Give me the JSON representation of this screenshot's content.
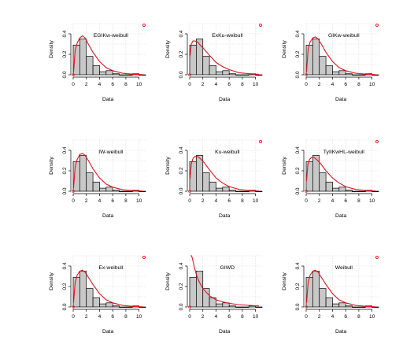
{
  "figure": {
    "line_color": "#e8141c",
    "bar_fill": "#c8c8c8",
    "bar_edge": "#000000",
    "grid_color": "#d9d9d9"
  },
  "chart_data": [
    {
      "type": "bar",
      "title": "EGIKw-weibull",
      "xlabel": "Data",
      "ylabel": "Density",
      "x_ticks": [
        0,
        2,
        4,
        6,
        8,
        10
      ],
      "y_ticks": [
        0.0,
        0.2,
        0.4
      ],
      "xlim": [
        0,
        11
      ],
      "ylim": [
        0,
        0.5
      ],
      "bins": [
        [
          0,
          1
        ],
        [
          1,
          2
        ],
        [
          2,
          3
        ],
        [
          3,
          4
        ],
        [
          4,
          5
        ],
        [
          5,
          6
        ],
        [
          6,
          7
        ],
        [
          7,
          8
        ],
        [
          8,
          9
        ],
        [
          9,
          10
        ],
        [
          10,
          11
        ]
      ],
      "values": [
        0.29,
        0.35,
        0.18,
        0.09,
        0.03,
        0.04,
        0.01,
        0.0,
        0.0,
        0.01,
        0.0
      ],
      "curve": {
        "x": [
          0.05,
          0.3,
          0.6,
          1.0,
          1.4,
          1.8,
          2.3,
          3.0,
          4.0,
          5.0,
          6.0,
          7.5,
          9.0,
          10.5
        ],
        "y": [
          0.02,
          0.24,
          0.31,
          0.36,
          0.38,
          0.36,
          0.3,
          0.22,
          0.13,
          0.07,
          0.04,
          0.015,
          0.006,
          0.002
        ]
      },
      "marker": true
    },
    {
      "type": "bar",
      "title": "ExKu-weibull",
      "xlabel": "Data",
      "ylabel": "Density",
      "x_ticks": [
        0,
        2,
        4,
        6,
        8,
        10
      ],
      "y_ticks": [
        0.0,
        0.2,
        0.4
      ],
      "xlim": [
        0,
        11
      ],
      "ylim": [
        0,
        0.5
      ],
      "bins": [
        [
          0,
          1
        ],
        [
          1,
          2
        ],
        [
          2,
          3
        ],
        [
          3,
          4
        ],
        [
          4,
          5
        ],
        [
          5,
          6
        ],
        [
          6,
          7
        ],
        [
          7,
          8
        ],
        [
          8,
          9
        ],
        [
          9,
          10
        ],
        [
          10,
          11
        ]
      ],
      "values": [
        0.29,
        0.35,
        0.18,
        0.09,
        0.03,
        0.04,
        0.01,
        0.0,
        0.0,
        0.01,
        0.0
      ],
      "curve": {
        "x": [
          0.05,
          0.25,
          0.5,
          0.8,
          1.2,
          1.6,
          2.2,
          3.0,
          4.0,
          5.0,
          6.0,
          7.5,
          9.0,
          10.5
        ],
        "y": [
          0.18,
          0.3,
          0.33,
          0.33,
          0.32,
          0.29,
          0.25,
          0.19,
          0.12,
          0.08,
          0.05,
          0.02,
          0.01,
          0.004
        ]
      },
      "marker": true
    },
    {
      "type": "bar",
      "title": "GIKw-weibull",
      "xlabel": "Data",
      "ylabel": "Density",
      "x_ticks": [
        0,
        2,
        4,
        6,
        8,
        10
      ],
      "y_ticks": [
        0.0,
        0.2,
        0.4
      ],
      "xlim": [
        0,
        11
      ],
      "ylim": [
        0,
        0.5
      ],
      "bins": [
        [
          0,
          1
        ],
        [
          1,
          2
        ],
        [
          2,
          3
        ],
        [
          3,
          4
        ],
        [
          4,
          5
        ],
        [
          5,
          6
        ],
        [
          6,
          7
        ],
        [
          7,
          8
        ],
        [
          8,
          9
        ],
        [
          9,
          10
        ],
        [
          10,
          11
        ]
      ],
      "values": [
        0.29,
        0.35,
        0.18,
        0.09,
        0.03,
        0.04,
        0.01,
        0.0,
        0.0,
        0.01,
        0.0
      ],
      "curve": {
        "x": [
          0.05,
          0.3,
          0.6,
          1.0,
          1.4,
          1.8,
          2.3,
          3.0,
          4.0,
          5.0,
          6.0,
          7.5,
          9.0,
          10.5
        ],
        "y": [
          0.03,
          0.25,
          0.32,
          0.36,
          0.37,
          0.35,
          0.3,
          0.22,
          0.13,
          0.07,
          0.04,
          0.015,
          0.006,
          0.002
        ]
      },
      "marker": true
    },
    {
      "type": "bar",
      "title": "IW-weibull",
      "xlabel": "Data",
      "ylabel": "Density",
      "x_ticks": [
        0,
        2,
        4,
        6,
        8,
        10
      ],
      "y_ticks": [
        0.0,
        0.2,
        0.4
      ],
      "xlim": [
        0,
        11
      ],
      "ylim": [
        0,
        0.5
      ],
      "bins": [
        [
          0,
          1
        ],
        [
          1,
          2
        ],
        [
          2,
          3
        ],
        [
          3,
          4
        ],
        [
          4,
          5
        ],
        [
          5,
          6
        ],
        [
          6,
          7
        ],
        [
          7,
          8
        ],
        [
          8,
          9
        ],
        [
          9,
          10
        ],
        [
          10,
          11
        ]
      ],
      "values": [
        0.29,
        0.35,
        0.18,
        0.09,
        0.03,
        0.04,
        0.01,
        0.0,
        0.0,
        0.01,
        0.0
      ],
      "curve": {
        "x": [
          0.05,
          0.3,
          0.6,
          1.0,
          1.4,
          1.8,
          2.3,
          3.0,
          4.0,
          5.0,
          6.0,
          7.5,
          9.0,
          10.5
        ],
        "y": [
          0.03,
          0.24,
          0.31,
          0.36,
          0.37,
          0.35,
          0.3,
          0.22,
          0.13,
          0.07,
          0.04,
          0.015,
          0.006,
          0.002
        ]
      },
      "marker": false
    },
    {
      "type": "bar",
      "title": "Ku-weibull",
      "xlabel": "Data",
      "ylabel": "Density",
      "x_ticks": [
        0,
        2,
        4,
        6,
        8,
        10
      ],
      "y_ticks": [
        0.0,
        0.2,
        0.4
      ],
      "xlim": [
        0,
        11
      ],
      "ylim": [
        0,
        0.5
      ],
      "bins": [
        [
          0,
          1
        ],
        [
          1,
          2
        ],
        [
          2,
          3
        ],
        [
          3,
          4
        ],
        [
          4,
          5
        ],
        [
          5,
          6
        ],
        [
          6,
          7
        ],
        [
          7,
          8
        ],
        [
          8,
          9
        ],
        [
          9,
          10
        ],
        [
          10,
          11
        ]
      ],
      "values": [
        0.29,
        0.35,
        0.18,
        0.09,
        0.03,
        0.04,
        0.01,
        0.0,
        0.0,
        0.01,
        0.0
      ],
      "curve": {
        "x": [
          0.05,
          0.25,
          0.5,
          0.8,
          1.2,
          1.6,
          2.2,
          3.0,
          4.0,
          5.0,
          6.0,
          7.5,
          9.0,
          10.5
        ],
        "y": [
          0.12,
          0.27,
          0.32,
          0.34,
          0.34,
          0.32,
          0.28,
          0.21,
          0.13,
          0.08,
          0.045,
          0.018,
          0.007,
          0.003
        ]
      },
      "marker": true
    },
    {
      "type": "bar",
      "title": "TyIIKwHL-weibull",
      "xlabel": "Data",
      "ylabel": "Density",
      "x_ticks": [
        0,
        2,
        4,
        6,
        8,
        10
      ],
      "y_ticks": [
        0.0,
        0.2,
        0.4
      ],
      "xlim": [
        0,
        11
      ],
      "ylim": [
        0,
        0.5
      ],
      "bins": [
        [
          0,
          1
        ],
        [
          1,
          2
        ],
        [
          2,
          3
        ],
        [
          3,
          4
        ],
        [
          4,
          5
        ],
        [
          5,
          6
        ],
        [
          6,
          7
        ],
        [
          7,
          8
        ],
        [
          8,
          9
        ],
        [
          9,
          10
        ],
        [
          10,
          11
        ]
      ],
      "values": [
        0.29,
        0.35,
        0.18,
        0.09,
        0.03,
        0.04,
        0.01,
        0.0,
        0.0,
        0.01,
        0.0
      ],
      "curve": {
        "x": [
          0.05,
          0.25,
          0.5,
          0.8,
          1.2,
          1.6,
          2.2,
          3.0,
          4.0,
          5.0,
          6.0,
          7.5,
          9.0,
          10.5
        ],
        "y": [
          0.1,
          0.26,
          0.31,
          0.33,
          0.33,
          0.31,
          0.27,
          0.2,
          0.13,
          0.08,
          0.045,
          0.018,
          0.007,
          0.003
        ]
      },
      "marker": true
    },
    {
      "type": "bar",
      "title": "Ex-weibull",
      "xlabel": "Data",
      "ylabel": "Density",
      "x_ticks": [
        0,
        2,
        4,
        6,
        8,
        10
      ],
      "y_ticks": [
        0.0,
        0.2,
        0.4
      ],
      "xlim": [
        0,
        11
      ],
      "ylim": [
        0,
        0.5
      ],
      "bins": [
        [
          0,
          1
        ],
        [
          1,
          2
        ],
        [
          2,
          3
        ],
        [
          3,
          4
        ],
        [
          4,
          5
        ],
        [
          5,
          6
        ],
        [
          6,
          7
        ],
        [
          7,
          8
        ],
        [
          8,
          9
        ],
        [
          9,
          10
        ],
        [
          10,
          11
        ]
      ],
      "values": [
        0.29,
        0.35,
        0.18,
        0.09,
        0.03,
        0.04,
        0.01,
        0.0,
        0.0,
        0.01,
        0.0
      ],
      "curve": {
        "x": [
          0.05,
          0.3,
          0.6,
          1.0,
          1.4,
          1.8,
          2.3,
          3.0,
          4.0,
          5.0,
          6.0,
          7.5,
          9.0,
          10.5
        ],
        "y": [
          0.04,
          0.24,
          0.31,
          0.35,
          0.36,
          0.34,
          0.29,
          0.22,
          0.13,
          0.07,
          0.04,
          0.015,
          0.006,
          0.002
        ]
      },
      "marker": true
    },
    {
      "type": "bar",
      "title": "GIWD",
      "xlabel": "Data",
      "ylabel": "Density",
      "x_ticks": [
        0,
        2,
        4,
        6,
        8,
        10
      ],
      "y_ticks": [
        0.0,
        0.2,
        0.4
      ],
      "xlim": [
        0,
        11
      ],
      "ylim": [
        0,
        0.5
      ],
      "bins": [
        [
          0,
          1
        ],
        [
          1,
          2
        ],
        [
          2,
          3
        ],
        [
          3,
          4
        ],
        [
          4,
          5
        ],
        [
          5,
          6
        ],
        [
          6,
          7
        ],
        [
          7,
          8
        ],
        [
          8,
          9
        ],
        [
          9,
          10
        ],
        [
          10,
          11
        ]
      ],
      "values": [
        0.29,
        0.35,
        0.18,
        0.09,
        0.03,
        0.04,
        0.01,
        0.0,
        0.0,
        0.01,
        0.0
      ],
      "curve": {
        "x": [
          0.15,
          0.3,
          0.5,
          0.7,
          1.0,
          1.4,
          2.0,
          3.0,
          4.0,
          5.0,
          6.0,
          7.5,
          9.0,
          10.5
        ],
        "y": [
          0.5,
          0.5,
          0.45,
          0.39,
          0.32,
          0.25,
          0.18,
          0.11,
          0.07,
          0.05,
          0.035,
          0.022,
          0.015,
          0.01
        ]
      },
      "marker": false
    },
    {
      "type": "bar",
      "title": "Weibull",
      "xlabel": "Data",
      "ylabel": "Density",
      "x_ticks": [
        0,
        2,
        4,
        6,
        8,
        10
      ],
      "y_ticks": [
        0.0,
        0.2,
        0.4
      ],
      "xlim": [
        0,
        11
      ],
      "ylim": [
        0,
        0.5
      ],
      "bins": [
        [
          0,
          1
        ],
        [
          1,
          2
        ],
        [
          2,
          3
        ],
        [
          3,
          4
        ],
        [
          4,
          5
        ],
        [
          5,
          6
        ],
        [
          6,
          7
        ],
        [
          7,
          8
        ],
        [
          8,
          9
        ],
        [
          9,
          10
        ],
        [
          10,
          11
        ]
      ],
      "values": [
        0.29,
        0.35,
        0.18,
        0.09,
        0.03,
        0.04,
        0.01,
        0.0,
        0.0,
        0.01,
        0.0
      ],
      "curve": {
        "x": [
          0.05,
          0.3,
          0.6,
          1.0,
          1.4,
          1.8,
          2.3,
          3.0,
          4.0,
          5.0,
          6.0,
          7.5,
          9.0,
          10.5
        ],
        "y": [
          0.04,
          0.24,
          0.31,
          0.35,
          0.36,
          0.34,
          0.29,
          0.22,
          0.13,
          0.07,
          0.04,
          0.015,
          0.006,
          0.002
        ]
      },
      "marker": true
    }
  ]
}
